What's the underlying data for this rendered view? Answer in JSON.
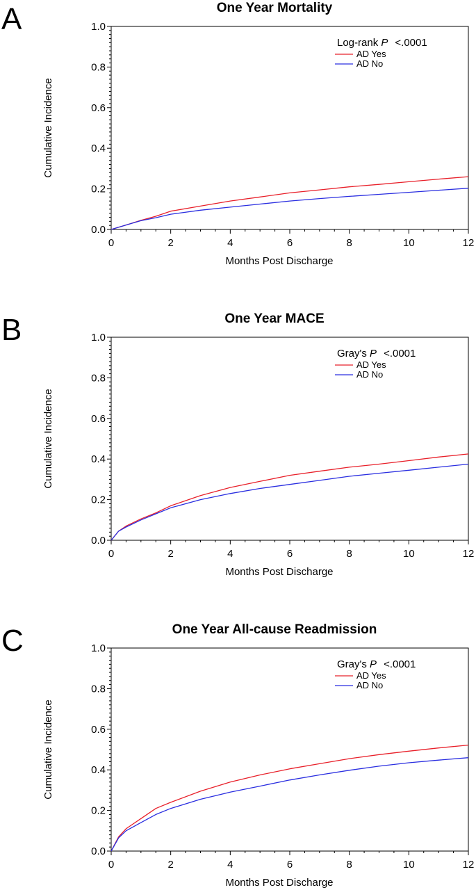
{
  "chart_data": [
    {
      "type": "line",
      "panel_label": "A",
      "title": "One Year Mortality",
      "xlabel": "Months Post Discharge",
      "ylabel": "Cumulative Incidence",
      "xlim": [
        0,
        12
      ],
      "ylim": [
        0,
        1.0
      ],
      "x_ticks": [
        "0",
        "2",
        "4",
        "6",
        "8",
        "10",
        "12"
      ],
      "y_ticks": [
        "0.0",
        "0.2",
        "0.4",
        "0.6",
        "0.8",
        "1.0"
      ],
      "stat_prefix": "Log-rank ",
      "stat_p": "P",
      "stat_value": "<.0001",
      "grid": false,
      "legend_position": "top-right",
      "x": [
        0,
        0.5,
        1,
        1.5,
        2,
        3,
        4,
        5,
        6,
        7,
        8,
        9,
        10,
        11,
        12
      ],
      "series": [
        {
          "name": "AD Yes",
          "color": "#e8202a",
          "values": [
            0,
            0.022,
            0.045,
            0.065,
            0.09,
            0.115,
            0.14,
            0.16,
            0.18,
            0.195,
            0.21,
            0.222,
            0.235,
            0.248,
            0.26
          ]
        },
        {
          "name": "AD No",
          "color": "#2a2ee0",
          "values": [
            0,
            0.022,
            0.043,
            0.058,
            0.075,
            0.095,
            0.11,
            0.125,
            0.14,
            0.152,
            0.163,
            0.173,
            0.183,
            0.193,
            0.203
          ]
        }
      ]
    },
    {
      "type": "line",
      "panel_label": "B",
      "title": "One Year MACE",
      "xlabel": "Months Post Discharge",
      "ylabel": "Cumulative Incidence",
      "xlim": [
        0,
        12
      ],
      "ylim": [
        0,
        1.0
      ],
      "x_ticks": [
        "0",
        "2",
        "4",
        "6",
        "8",
        "10",
        "12"
      ],
      "y_ticks": [
        "0.0",
        "0.2",
        "0.4",
        "0.6",
        "0.8",
        "1.0"
      ],
      "stat_prefix": "Gray's ",
      "stat_p": "P",
      "stat_value": "<.0001",
      "grid": false,
      "legend_position": "top-right",
      "x": [
        0,
        0.25,
        0.5,
        1,
        1.5,
        2,
        3,
        4,
        5,
        6,
        7,
        8,
        9,
        10,
        11,
        12
      ],
      "series": [
        {
          "name": "AD Yes",
          "color": "#e8202a",
          "values": [
            0,
            0.045,
            0.07,
            0.105,
            0.135,
            0.17,
            0.22,
            0.26,
            0.29,
            0.32,
            0.34,
            0.36,
            0.375,
            0.392,
            0.41,
            0.425
          ]
        },
        {
          "name": "AD No",
          "color": "#2a2ee0",
          "values": [
            0,
            0.045,
            0.065,
            0.1,
            0.13,
            0.16,
            0.2,
            0.23,
            0.255,
            0.275,
            0.295,
            0.315,
            0.33,
            0.345,
            0.36,
            0.375
          ]
        }
      ]
    },
    {
      "type": "line",
      "panel_label": "C",
      "title": "One Year All-cause Readmission",
      "xlabel": "Months Post Discharge",
      "ylabel": "Cumulative Incidence",
      "xlim": [
        0,
        12
      ],
      "ylim": [
        0,
        1.0
      ],
      "x_ticks": [
        "0",
        "2",
        "4",
        "6",
        "8",
        "10",
        "12"
      ],
      "y_ticks": [
        "0.0",
        "0.2",
        "0.4",
        "0.6",
        "0.8",
        "1.0"
      ],
      "stat_prefix": "Gray's ",
      "stat_p": "P",
      "stat_value": "<.0001",
      "grid": false,
      "legend_position": "top-right",
      "x": [
        0,
        0.25,
        0.5,
        1,
        1.5,
        2,
        3,
        4,
        5,
        6,
        7,
        8,
        9,
        10,
        11,
        12
      ],
      "series": [
        {
          "name": "AD Yes",
          "color": "#e8202a",
          "values": [
            0,
            0.07,
            0.11,
            0.16,
            0.21,
            0.24,
            0.295,
            0.34,
            0.375,
            0.405,
            0.43,
            0.455,
            0.475,
            0.492,
            0.508,
            0.522
          ]
        },
        {
          "name": "AD No",
          "color": "#2a2ee0",
          "values": [
            0,
            0.065,
            0.1,
            0.14,
            0.18,
            0.21,
            0.255,
            0.29,
            0.32,
            0.35,
            0.375,
            0.398,
            0.418,
            0.435,
            0.448,
            0.46
          ]
        }
      ]
    }
  ]
}
